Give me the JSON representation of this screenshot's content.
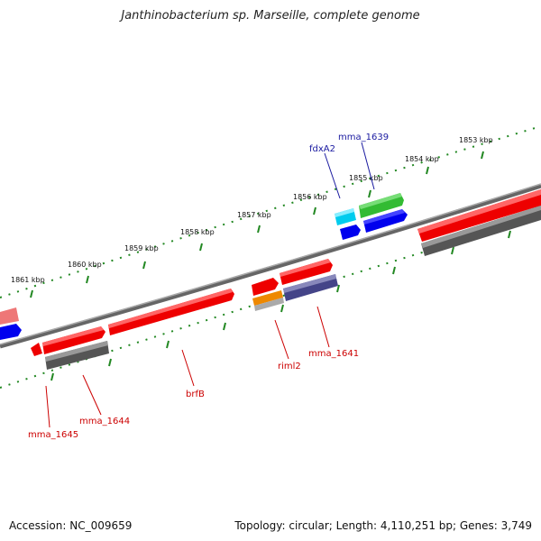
{
  "title": "Janthinobacterium sp. Marseille, complete genome",
  "footer": {
    "accession": "Accession: NC_009659",
    "summary": "Topology: circular; Length: 4,110,251 bp; Genes: 3,749"
  },
  "scale_labels": [
    "1853 kbp",
    "1854 kbp",
    "1855 kbp",
    "1856 kbp",
    "1857 kbp",
    "1858 kbp",
    "1859 kbp",
    "1860 kbp",
    "1861 kbp"
  ],
  "gene_labels": [
    {
      "text": "mma_1639",
      "color": "#1a1aa0"
    },
    {
      "text": "fdxA2",
      "color": "#1a1aa0"
    },
    {
      "text": "riml2",
      "color": "#cc0000"
    },
    {
      "text": "mma_1641",
      "color": "#cc0000"
    },
    {
      "text": "brfB",
      "color": "#cc0000"
    },
    {
      "text": "mma_1644",
      "color": "#cc0000"
    },
    {
      "text": "mma_1645",
      "color": "#cc0000"
    }
  ],
  "colors": {
    "cds": "#ee0000",
    "gene": "#666666",
    "blue": "#0000ee",
    "green": "#33bb33",
    "cyan": "#00ccee",
    "orange": "#ee8800",
    "purple": "#444488",
    "pink": "#ee7777",
    "backbone": "#888888",
    "ticks": "#228822"
  }
}
